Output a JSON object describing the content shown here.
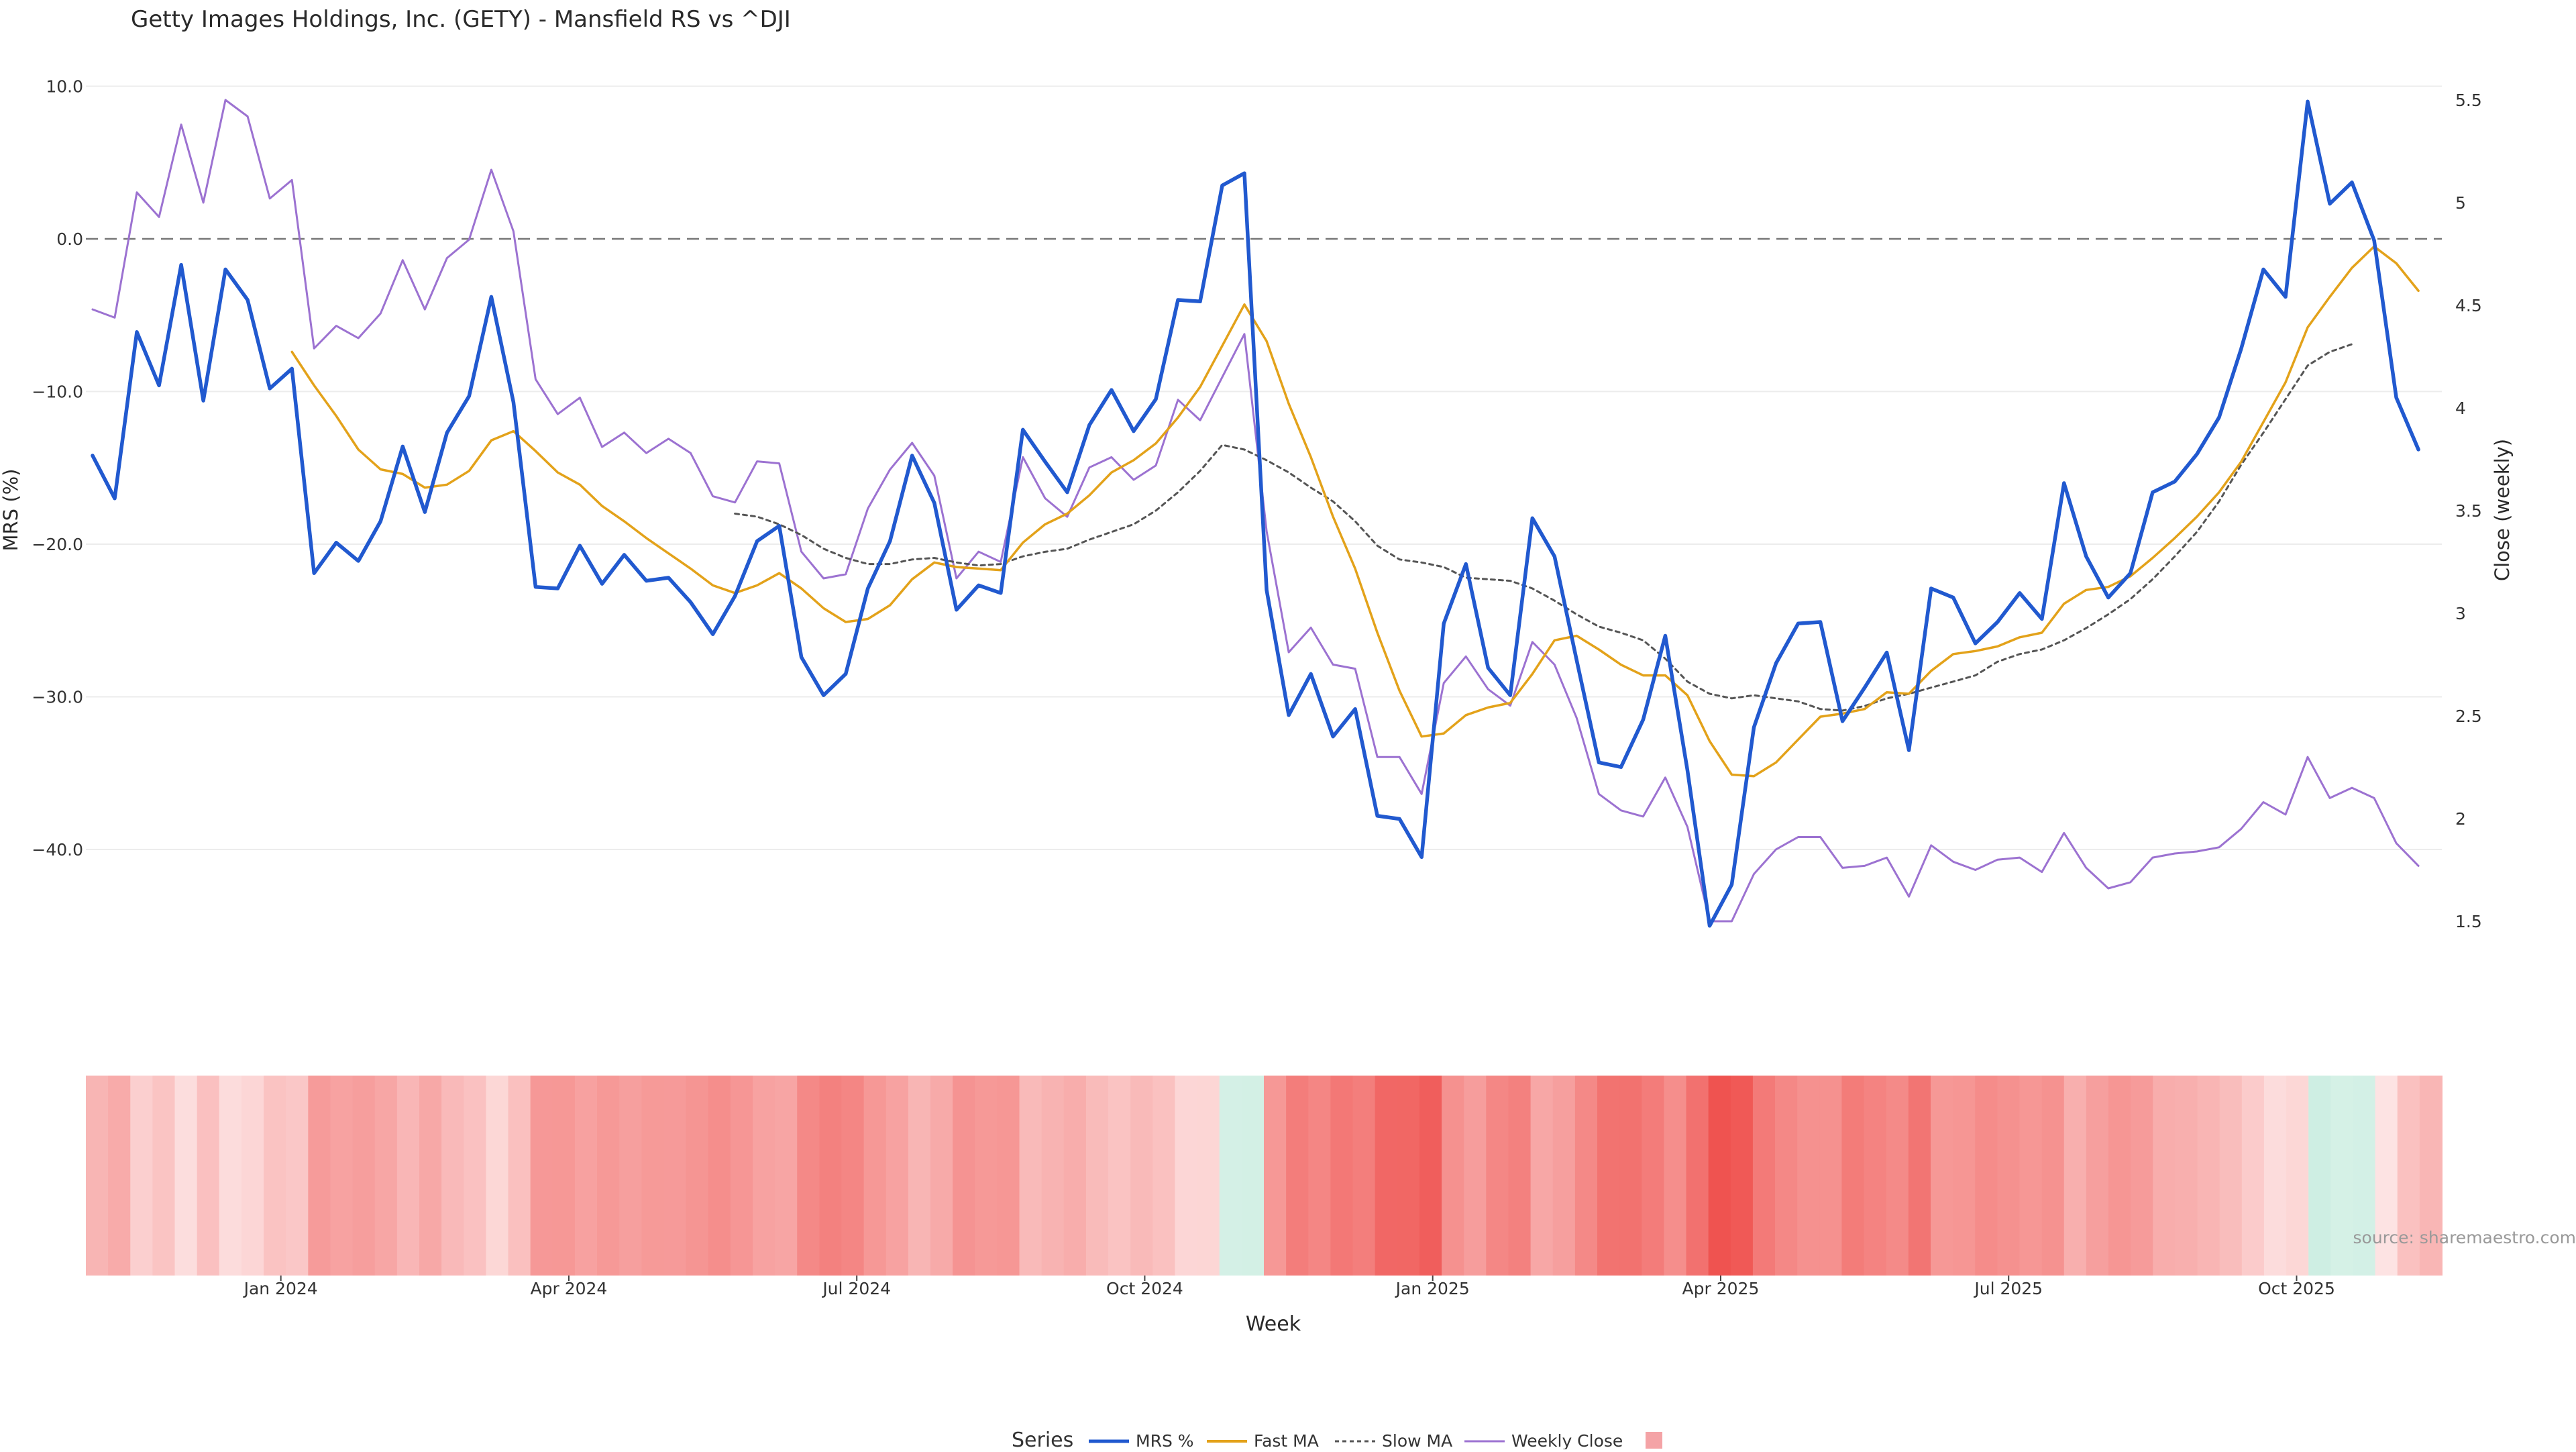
{
  "chart_data": {
    "type": "line",
    "title": "Getty Images Holdings, Inc. (GETY) - Mansfield RS vs ^DJI",
    "xlabel": "Week",
    "ylabel_left": "MRS (%)",
    "ylabel_right": "Close (weekly)",
    "source": "source: sharemaestro.com",
    "y_left_ticks": [
      "10.0",
      "0.0",
      "−10.0",
      "−20.0",
      "−30.0",
      "−40.0"
    ],
    "y_left_tick_values": [
      10,
      0,
      -10,
      -20,
      -30,
      -40
    ],
    "y_right_ticks": [
      "5.5",
      "5",
      "4.5",
      "4",
      "3.5",
      "3",
      "2.5",
      "2",
      "1.5"
    ],
    "y_right_tick_values": [
      5.5,
      5,
      4.5,
      4,
      3.5,
      3,
      2.5,
      2,
      1.5
    ],
    "x_ticks": [
      "Jan 2024",
      "Apr 2024",
      "Jul 2024",
      "Oct 2024",
      "Jan 2025",
      "Apr 2025",
      "Jul 2025",
      "Oct 2025"
    ],
    "x_tick_weeks": [
      8.5,
      21.5,
      34.5,
      47.5,
      60.5,
      73.5,
      86.5,
      99.5
    ],
    "ylim_left": [
      -45,
      10
    ],
    "ylim_right": [
      1.5,
      5.5
    ],
    "zero_line": 0,
    "grid": true,
    "legend": {
      "title": "Series",
      "placement": "bottom-center",
      "items": [
        "MRS %",
        "Fast MA",
        "Slow MA",
        "Weekly Close",
        ""
      ]
    },
    "colors": {
      "mrs": "#2159cf",
      "fast_ma": "#e3a21a",
      "slow_ma": "#555555",
      "weekly_close": "#9c72d1",
      "zero_line": "#777777",
      "heat_negative": "#ef5350",
      "heat_positive": "#cdeee2"
    },
    "series": [
      {
        "name": "MRS %",
        "start_week": 0,
        "values": [
          -14.2,
          -17,
          -6.1,
          -9.6,
          -1.7,
          -10.6,
          -2,
          -4,
          -9.8,
          -8.5,
          -21.9,
          -19.9,
          -21.1,
          -18.5,
          -13.6,
          -17.9,
          -12.7,
          -10.3,
          -3.8,
          -10.7,
          -22.8,
          -22.9,
          -20.1,
          -22.6,
          -20.7,
          -22.4,
          -22.2,
          -23.8,
          -25.9,
          -23.4,
          -19.8,
          -18.8,
          -27.4,
          -29.9,
          -28.5,
          -22.9,
          -19.8,
          -14.2,
          -17.3,
          -24.3,
          -22.7,
          -23.2,
          -12.5,
          -14.6,
          -16.6,
          -12.2,
          -9.9,
          -12.6,
          -10.5,
          -4,
          -4.1,
          3.5,
          4.3,
          -23,
          -31.2,
          -28.5,
          -32.6,
          -30.8,
          -37.8,
          -38,
          -40.5,
          -25.2,
          -21.3,
          -28.1,
          -29.9,
          -18.3,
          -20.8,
          -27.6,
          -34.3,
          -34.6,
          -31.5,
          -26,
          -34.8,
          -45,
          -42.3,
          -32,
          -27.8,
          -25.2,
          -25.1,
          -31.6,
          -29.4,
          -27.1,
          -33.5,
          -22.9,
          -23.5,
          -26.5,
          -25.1,
          -23.2,
          -24.9,
          -16,
          -20.8,
          -23.5,
          -21.9,
          -16.6,
          -15.9,
          -14.1,
          -11.7,
          -7.2,
          -2,
          -3.8,
          9,
          2.3,
          3.7,
          -0.1,
          -10.4,
          -13.8
        ]
      },
      {
        "name": "Fast MA",
        "start_week": 9,
        "values": [
          -7.4,
          -9.6,
          -11.6,
          -13.8,
          -15.1,
          -15.4,
          -16.3,
          -16.1,
          -15.2,
          -13.2,
          -12.6,
          -13.9,
          -15.3,
          -16.1,
          -17.5,
          -18.5,
          -19.6,
          -20.6,
          -21.6,
          -22.7,
          -23.2,
          -22.7,
          -21.9,
          -22.9,
          -24.2,
          -25.1,
          -24.9,
          -24,
          -22.3,
          -21.2,
          -21.5,
          -21.6,
          -21.7,
          -19.9,
          -18.7,
          -18,
          -16.8,
          -15.3,
          -14.5,
          -13.4,
          -11.7,
          -9.7,
          -7,
          -4.3,
          -6.7,
          -10.8,
          -14.3,
          -18.2,
          -21.6,
          -25.8,
          -29.6,
          -32.6,
          -32.4,
          -31.2,
          -30.7,
          -30.4,
          -28.5,
          -26.3,
          -26,
          -26.9,
          -27.9,
          -28.6,
          -28.6,
          -29.9,
          -32.9,
          -35.1,
          -35.2,
          -34.3,
          -32.8,
          -31.3,
          -31.1,
          -30.8,
          -29.7,
          -29.8,
          -28.3,
          -27.2,
          -27,
          -26.7,
          -26.1,
          -25.8,
          -23.9,
          -23,
          -22.8,
          -22.1,
          -20.9,
          -19.6,
          -18.2,
          -16.6,
          -14.6,
          -12,
          -9.4,
          -5.8,
          -3.8,
          -1.9,
          -0.5,
          -1.6,
          -3.4
        ]
      },
      {
        "name": "Slow MA",
        "start_week": 29,
        "values": [
          -18,
          -18.2,
          -18.7,
          -19.4,
          -20.3,
          -20.9,
          -21.3,
          -21.3,
          -21,
          -20.9,
          -21.2,
          -21.4,
          -21.3,
          -20.8,
          -20.5,
          -20.3,
          -19.7,
          -19.2,
          -18.7,
          -17.8,
          -16.6,
          -15.2,
          -13.5,
          -13.8,
          -14.5,
          -15.3,
          -16.3,
          -17.2,
          -18.5,
          -20.1,
          -21,
          -21.2,
          -21.5,
          -22.2,
          -22.3,
          -22.4,
          -22.9,
          -23.7,
          -24.6,
          -25.4,
          -25.8,
          -26.3,
          -27.5,
          -29,
          -29.8,
          -30.1,
          -29.9,
          -30.1,
          -30.3,
          -30.8,
          -30.9,
          -30.6,
          -30.1,
          -29.8,
          -29.4,
          -29,
          -28.6,
          -27.7,
          -27.2,
          -26.9,
          -26.3,
          -25.5,
          -24.6,
          -23.6,
          -22.3,
          -20.8,
          -19.2,
          -17.2,
          -14.8,
          -12.7,
          -10.5,
          -8.3,
          -7.4,
          -6.9
        ]
      },
      {
        "name": "Weekly Close",
        "start_week": 0,
        "values": [
          4.48,
          4.44,
          5.05,
          4.93,
          5.38,
          5,
          5.5,
          5.42,
          5.02,
          5.11,
          4.29,
          4.4,
          4.34,
          4.46,
          4.72,
          4.48,
          4.73,
          4.82,
          5.16,
          4.86,
          4.14,
          3.97,
          4.05,
          3.81,
          3.88,
          3.78,
          3.85,
          3.78,
          3.57,
          3.54,
          3.74,
          3.73,
          3.3,
          3.17,
          3.19,
          3.51,
          3.7,
          3.83,
          3.67,
          3.17,
          3.3,
          3.25,
          3.76,
          3.56,
          3.47,
          3.71,
          3.76,
          3.65,
          3.72,
          4.04,
          3.94,
          4.15,
          4.36,
          3.4,
          2.81,
          2.93,
          2.75,
          2.73,
          2.3,
          2.3,
          2.12,
          2.66,
          2.79,
          2.63,
          2.55,
          2.86,
          2.75,
          2.49,
          2.12,
          2.04,
          2.01,
          2.2,
          1.96,
          1.5,
          1.5,
          1.73,
          1.85,
          1.91,
          1.91,
          1.76,
          1.77,
          1.81,
          1.62,
          1.87,
          1.79,
          1.75,
          1.8,
          1.81,
          1.74,
          1.93,
          1.76,
          1.66,
          1.69,
          1.81,
          1.83,
          1.84,
          1.86,
          1.95,
          2.08,
          2.02,
          2.3,
          2.1,
          2.15,
          2.1,
          1.88,
          1.77
        ]
      }
    ],
    "heatmap_strip": {
      "description_series": "MRS %",
      "diverging_scale": {
        "negative": "#ef5350",
        "neutral": "#ffffff",
        "positive": "#cdeee2"
      },
      "cell_count": 106
    }
  }
}
